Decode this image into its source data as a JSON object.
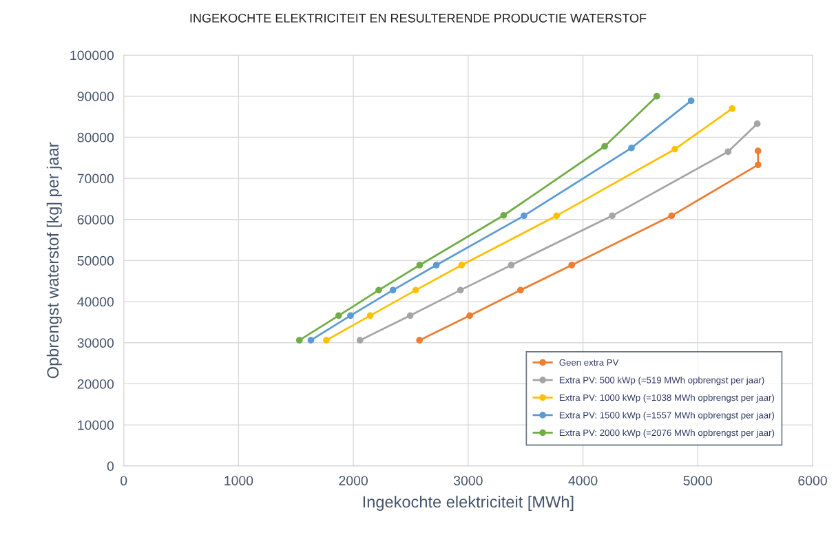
{
  "chart_data": {
    "type": "line",
    "title": "INGEKOCHTE ELEKTRICITEIT EN RESULTERENDE PRODUCTIE WATERSTOF",
    "xlabel": "Ingekochte elektriciteit [MWh]",
    "ylabel": "Opbrengst waterstof [kg] per jaar",
    "xlim": [
      0,
      6000
    ],
    "xticks": [
      0,
      1000,
      2000,
      3000,
      4000,
      5000,
      6000
    ],
    "ylim": [
      0,
      100000
    ],
    "yticks": [
      0,
      10000,
      20000,
      30000,
      40000,
      50000,
      60000,
      70000,
      80000,
      90000,
      100000
    ],
    "grid": true,
    "legend": "bottom right",
    "marker": "circle",
    "line_style": "solid",
    "series": [
      {
        "name": "Geen extra PV",
        "color": "#ed7d31",
        "x": [
          2576,
          3014,
          3456,
          3902,
          4772,
          5525,
          5525
        ],
        "values": [
          30600,
          36600,
          42800,
          48900,
          60900,
          73300,
          76700
        ]
      },
      {
        "name": "Extra PV: 500 kWp (=519 MWh opbrengst per jaar)",
        "color": "#a5a5a5",
        "x": [
          2058,
          2495,
          2933,
          3375,
          4255,
          5264,
          5518
        ],
        "values": [
          30600,
          36600,
          42800,
          48900,
          60900,
          76500,
          83300
        ]
      },
      {
        "name": "Extra PV: 1000 kWp (=1038 MWh opbrengst per jaar)",
        "color": "#ffc000",
        "x": [
          1765,
          2147,
          2543,
          2943,
          3770,
          4800,
          5300
        ],
        "values": [
          30600,
          36600,
          42800,
          48900,
          60900,
          77100,
          87000
        ]
      },
      {
        "name": "Extra PV: 1500 kWp (=1557 MWh opbrengst per jaar)",
        "color": "#5b9bd5",
        "x": [
          1630,
          1975,
          2345,
          2723,
          3486,
          4422,
          4942
        ],
        "values": [
          30600,
          36600,
          42800,
          48900,
          60900,
          77400,
          88900
        ]
      },
      {
        "name": "Extra PV: 2000 kWp (=2076 MWh opbrengst per jaar)",
        "color": "#70ad47",
        "x": [
          1530,
          1872,
          2221,
          2578,
          3309,
          4189,
          4643
        ],
        "values": [
          30600,
          36600,
          42800,
          48900,
          61000,
          77800,
          90000
        ]
      }
    ]
  }
}
